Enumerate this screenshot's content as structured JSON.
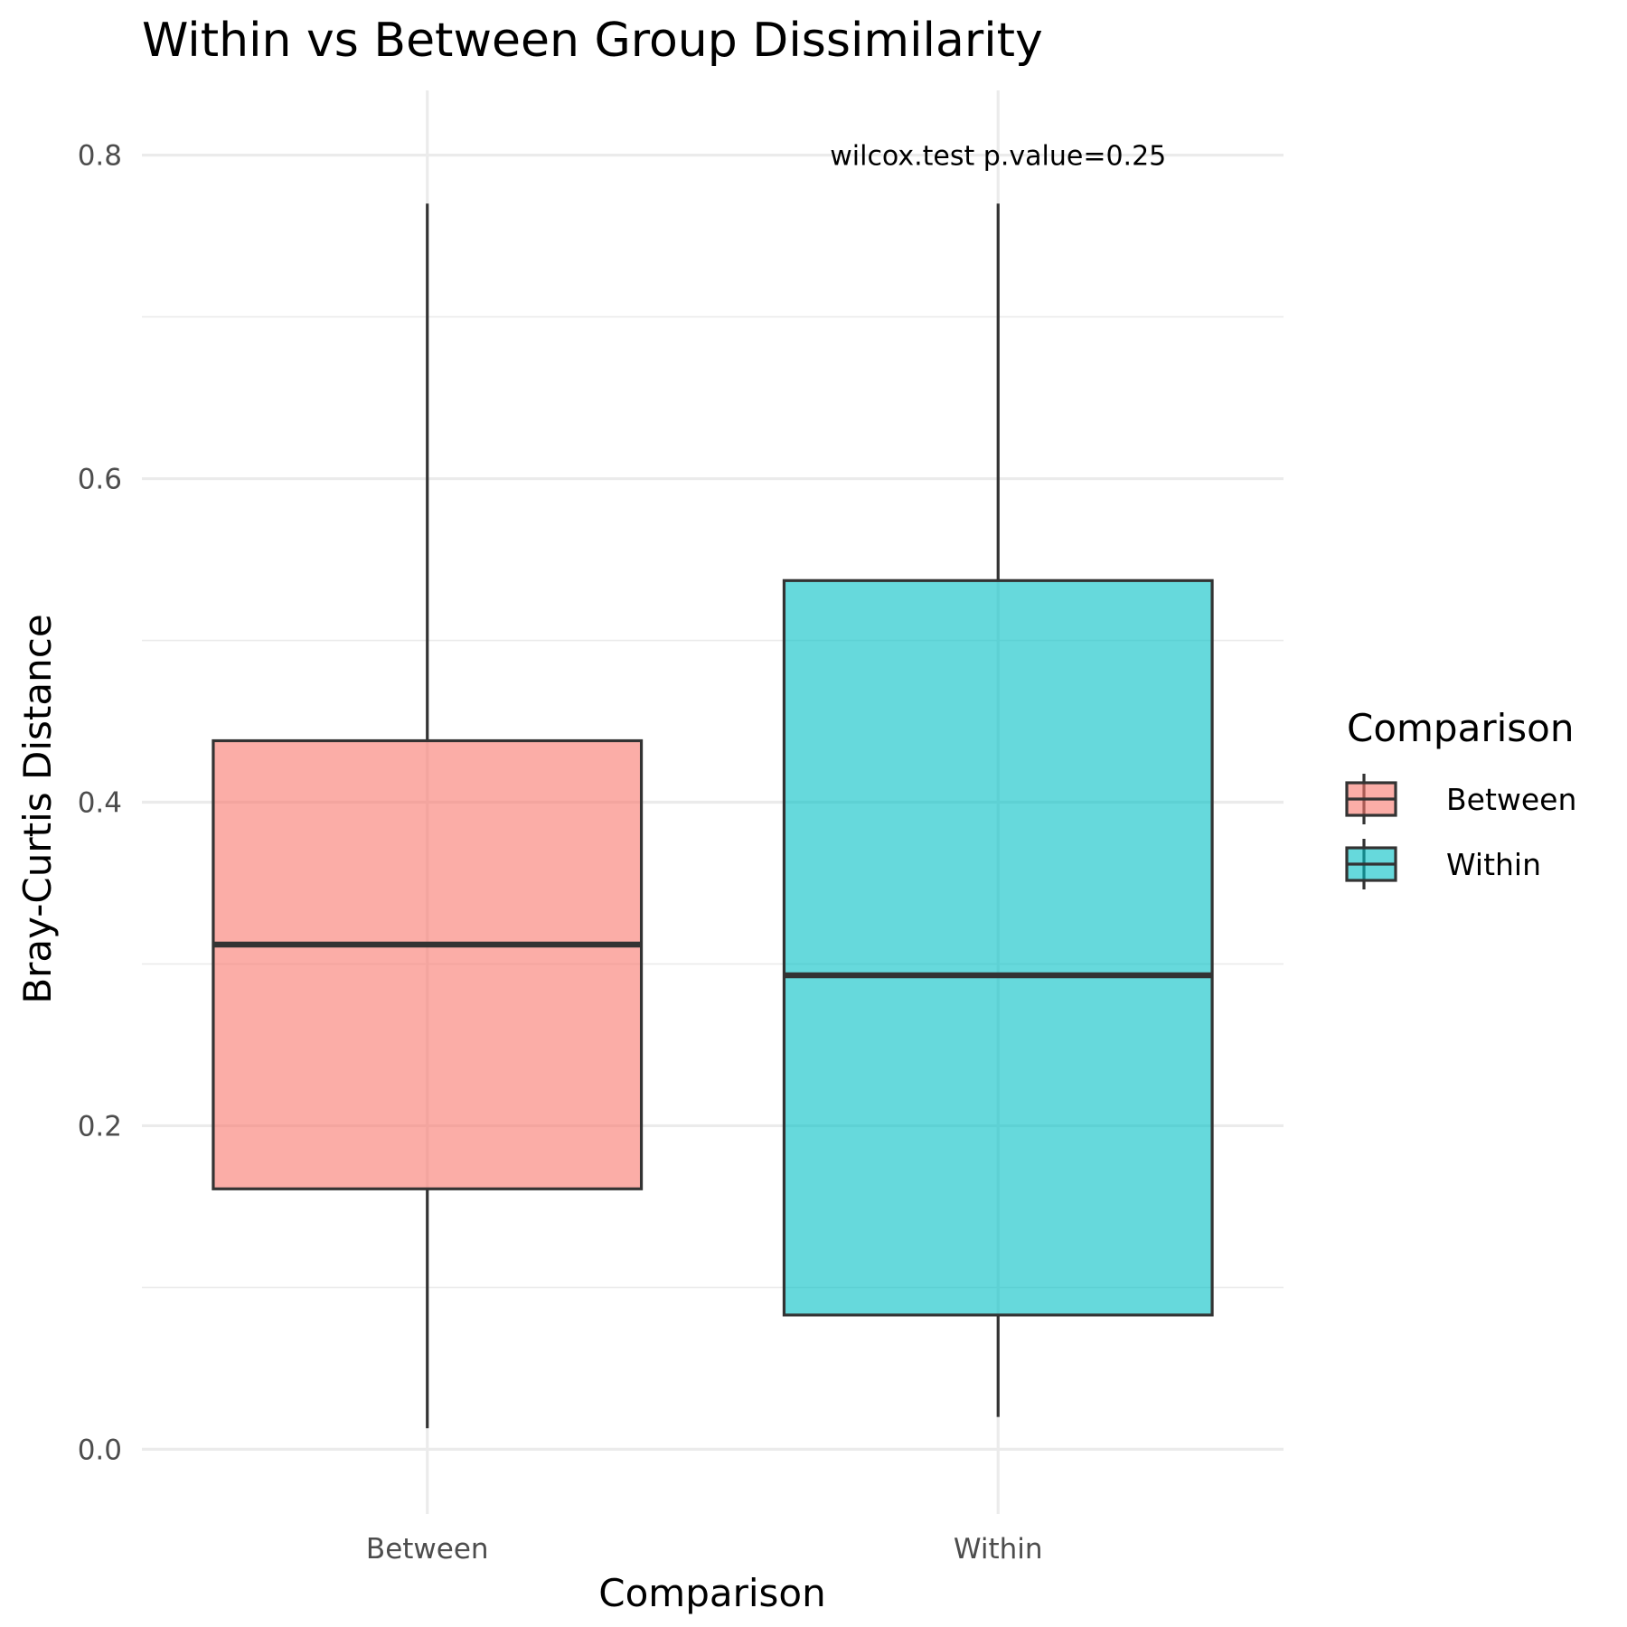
{
  "chart_data": {
    "type": "boxplot",
    "title": "Within vs Between Group Dissimilarity",
    "xlabel": "Comparison",
    "ylabel": "Bray-Curtis Distance",
    "ylim": [
      -0.04,
      0.84
    ],
    "yticks": [
      0.0,
      0.2,
      0.4,
      0.6,
      0.8
    ],
    "ytick_labels": [
      "0.0",
      "0.2",
      "0.4",
      "0.6",
      "0.8"
    ],
    "categories": [
      "Between",
      "Within"
    ],
    "series": [
      {
        "name": "Between",
        "min": 0.013,
        "q1": 0.161,
        "median": 0.312,
        "q3": 0.438,
        "max": 0.77,
        "color": "#F8766D"
      },
      {
        "name": "Within",
        "min": 0.02,
        "q1": 0.083,
        "median": 0.293,
        "q3": 0.537,
        "max": 0.77,
        "color": "#00BFC4"
      }
    ],
    "annotation": {
      "text": "wilcox.test p.value=0.25",
      "x": "Within",
      "y": 0.8
    },
    "grid": true,
    "legend": {
      "title": "Comparison",
      "position": "right",
      "entries": [
        "Between",
        "Within"
      ]
    }
  }
}
